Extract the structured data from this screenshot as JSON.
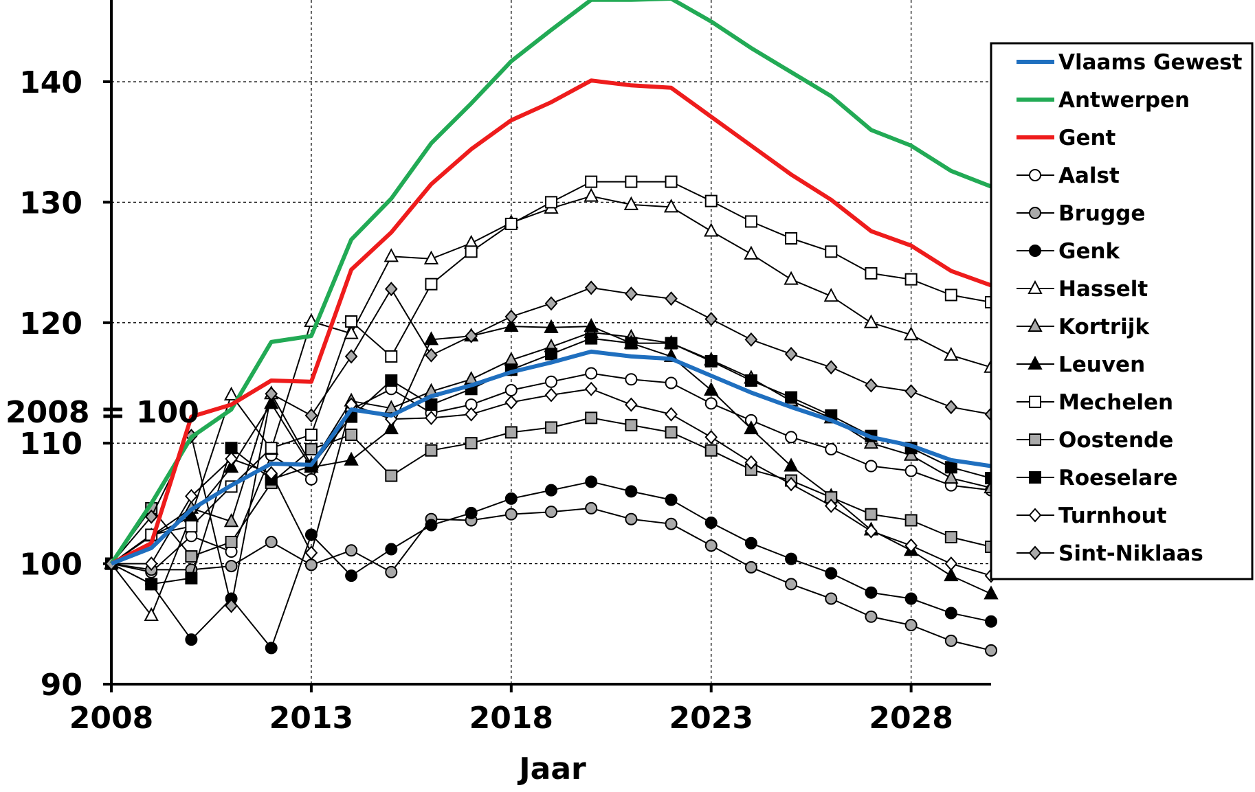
{
  "chart_data": {
    "type": "line",
    "xlabel": "Jaar",
    "ylabel": "2008 = 100",
    "xlim": [
      2008,
      2030
    ],
    "ylim": [
      90,
      146
    ],
    "xticks": [
      2008,
      2013,
      2018,
      2023,
      2028
    ],
    "yticks": [
      90,
      100,
      110,
      120,
      130,
      140
    ],
    "grid": "on",
    "legend_position": "right",
    "x": [
      2008,
      2009,
      2010,
      2011,
      2012,
      2013,
      2014,
      2015,
      2016,
      2017,
      2018,
      2019,
      2020,
      2021,
      2022,
      2023,
      2024,
      2025,
      2026,
      2027,
      2028,
      2029,
      2030
    ],
    "series": [
      {
        "name": "Vlaams Gewest",
        "color": "#1f6fbf",
        "marker": "none",
        "values": [
          100,
          101.3,
          104.5,
          106.5,
          108.3,
          108.2,
          112.8,
          112.3,
          113.9,
          114.8,
          115.9,
          116.7,
          117.6,
          117.2,
          117.0,
          115.6,
          114.2,
          113.0,
          111.9,
          110.5,
          109.8,
          108.6,
          108.1
        ]
      },
      {
        "name": "Antwerpen",
        "color": "#22aa55",
        "marker": "none",
        "values": [
          100,
          105.0,
          110.5,
          112.8,
          118.4,
          118.9,
          126.9,
          130.3,
          134.9,
          138.2,
          141.7,
          144.3,
          146.8,
          146.8,
          146.9,
          145.0,
          142.8,
          140.8,
          138.8,
          136.0,
          134.7,
          132.6,
          131.3
        ]
      },
      {
        "name": "Gent",
        "color": "#ee1c1c",
        "marker": "none",
        "values": [
          100,
          101.7,
          112.2,
          113.2,
          115.2,
          115.1,
          124.4,
          127.5,
          131.5,
          134.4,
          136.8,
          138.3,
          140.1,
          139.7,
          139.5,
          137.1,
          134.7,
          132.3,
          130.2,
          127.6,
          126.4,
          124.3,
          123.1
        ]
      },
      {
        "name": "Aalst",
        "color": "#000000",
        "marker": "circle",
        "fill": "#ffffff",
        "values": [
          100,
          99.3,
          102.3,
          101.0,
          109.0,
          107.0,
          112.8,
          114.5,
          112.5,
          113.2,
          114.4,
          115.1,
          115.8,
          115.3,
          115.0,
          113.3,
          111.9,
          110.5,
          109.5,
          108.1,
          107.7,
          106.5,
          106.1
        ]
      },
      {
        "name": "Brugge",
        "color": "#000000",
        "marker": "circle",
        "fill": "#aaaaaa",
        "values": [
          100,
          99.5,
          99.5,
          99.8,
          101.8,
          99.9,
          101.1,
          99.3,
          103.7,
          103.6,
          104.1,
          104.3,
          104.6,
          103.7,
          103.3,
          101.5,
          99.7,
          98.3,
          97.1,
          95.6,
          94.9,
          93.6,
          92.8
        ]
      },
      {
        "name": "Genk",
        "color": "#000000",
        "marker": "circle",
        "fill": "#000000",
        "values": [
          100,
          98.3,
          93.7,
          97.1,
          93.0,
          102.4,
          99.0,
          101.2,
          103.2,
          104.2,
          105.4,
          106.1,
          106.8,
          106.0,
          105.3,
          103.4,
          101.7,
          100.4,
          99.2,
          97.6,
          97.1,
          95.9,
          95.2
        ]
      },
      {
        "name": "Hasselt",
        "color": "#000000",
        "marker": "triangle",
        "fill": "#ffffff",
        "values": [
          100,
          95.7,
          104.0,
          114.0,
          109.5,
          120.1,
          119.1,
          125.5,
          125.3,
          126.6,
          128.3,
          129.5,
          130.5,
          129.8,
          129.6,
          127.6,
          125.7,
          123.6,
          122.2,
          120.0,
          119.0,
          117.3,
          116.3
        ]
      },
      {
        "name": "Kortrijk",
        "color": "#000000",
        "marker": "triangle",
        "fill": "#aaaaaa",
        "values": [
          100,
          102.3,
          104.6,
          103.5,
          114.1,
          108.2,
          113.5,
          112.9,
          114.3,
          115.3,
          116.9,
          118.0,
          119.2,
          118.8,
          118.3,
          116.9,
          115.4,
          113.5,
          112.1,
          110.0,
          109.0,
          107.1,
          106.3
        ]
      },
      {
        "name": "Leuven",
        "color": "#000000",
        "marker": "triangle",
        "fill": "#000000",
        "values": [
          100,
          102.3,
          103.9,
          108.0,
          113.3,
          108.0,
          108.6,
          111.2,
          118.6,
          118.9,
          119.7,
          119.6,
          119.7,
          118.3,
          117.2,
          114.4,
          111.2,
          108.1,
          105.6,
          102.8,
          101.1,
          99.0,
          97.5
        ]
      },
      {
        "name": "Mechelen",
        "color": "#000000",
        "marker": "square",
        "fill": "#ffffff",
        "values": [
          100,
          102.4,
          103.1,
          106.4,
          109.6,
          110.7,
          120.1,
          117.2,
          123.2,
          125.9,
          128.2,
          130.0,
          131.7,
          131.7,
          131.7,
          130.1,
          128.4,
          127.0,
          125.9,
          124.1,
          123.6,
          122.3,
          121.7
        ]
      },
      {
        "name": "Oostende",
        "color": "#000000",
        "marker": "square",
        "fill": "#aaaaaa",
        "values": [
          100,
          104.6,
          100.6,
          101.8,
          106.7,
          109.5,
          110.7,
          107.3,
          109.4,
          110.0,
          110.9,
          111.3,
          112.1,
          111.5,
          110.9,
          109.4,
          107.8,
          106.9,
          105.5,
          104.1,
          103.6,
          102.2,
          101.4
        ]
      },
      {
        "name": "Roeselare",
        "color": "#000000",
        "marker": "square",
        "fill": "#000000",
        "values": [
          100,
          98.3,
          98.8,
          109.6,
          107.0,
          108.1,
          112.2,
          115.2,
          113.2,
          114.5,
          116.1,
          117.4,
          118.7,
          118.3,
          118.3,
          116.8,
          115.2,
          113.8,
          112.3,
          110.6,
          109.6,
          108.0,
          107.1
        ]
      },
      {
        "name": "Turnhout",
        "color": "#000000",
        "marker": "diamond",
        "fill": "#ffffff",
        "values": [
          100,
          100.0,
          105.6,
          108.7,
          107.5,
          100.9,
          113.2,
          112.0,
          112.1,
          112.4,
          113.4,
          114.0,
          114.5,
          113.2,
          112.4,
          110.5,
          108.4,
          106.6,
          104.8,
          102.7,
          101.5,
          100.0,
          99.0
        ]
      },
      {
        "name": "Sint-Niklaas",
        "color": "#000000",
        "marker": "diamond",
        "fill": "#aaaaaa",
        "values": [
          100,
          103.9,
          110.6,
          96.5,
          114.1,
          112.3,
          117.2,
          122.8,
          117.3,
          118.9,
          120.5,
          121.6,
          122.9,
          122.4,
          122.0,
          120.3,
          118.6,
          117.4,
          116.3,
          114.8,
          114.3,
          113.0,
          112.4
        ]
      }
    ]
  }
}
